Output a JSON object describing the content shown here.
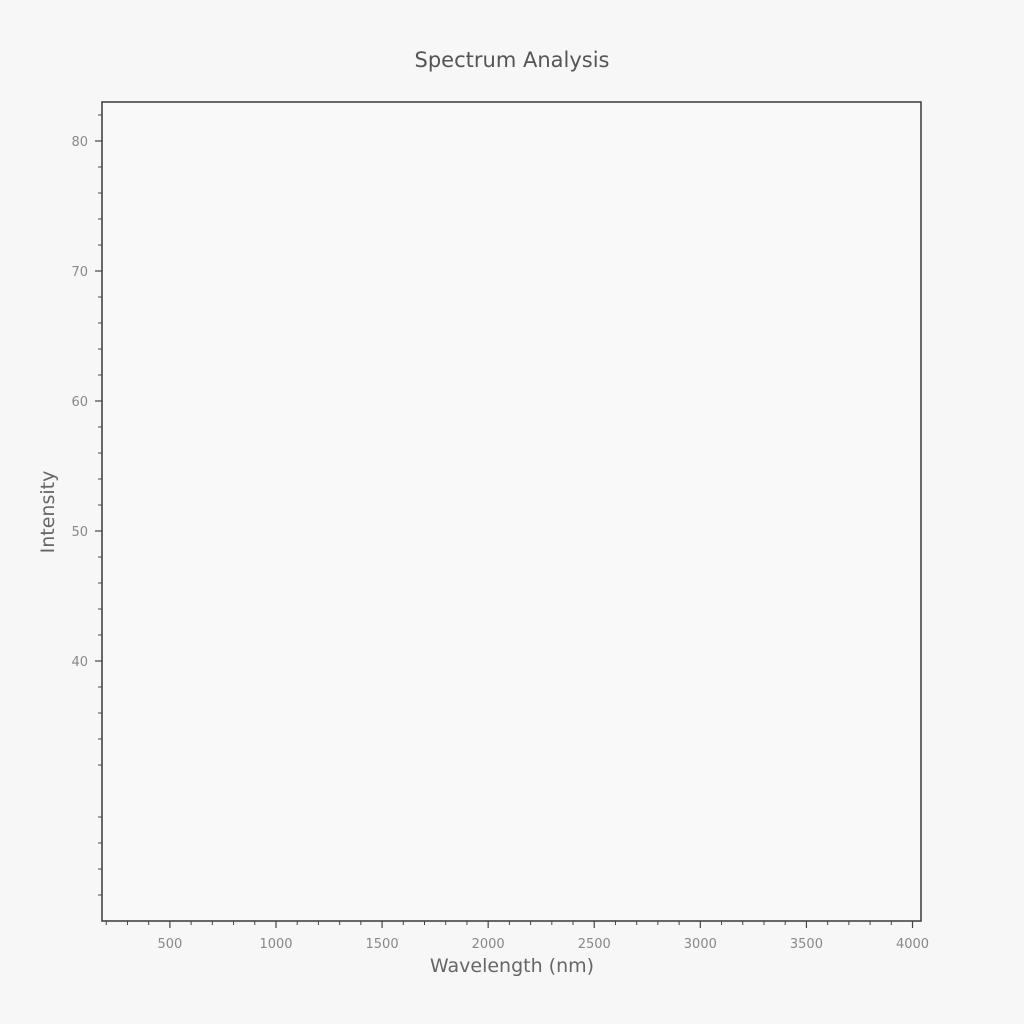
{
  "chart_data": {
    "type": "line",
    "title": "Spectrum Analysis",
    "xlabel": "Wavelength (nm)",
    "ylabel": "Intensity",
    "xlim": [
      180,
      4040
    ],
    "ylim": [
      20,
      83
    ],
    "x_ticks": [
      500,
      1000,
      1500,
      2000,
      2500,
      3000,
      3500,
      4000
    ],
    "x_tick_labels": [
      "500",
      "1000",
      "1500",
      "2000",
      "2500",
      "3000",
      "3500",
      "4000"
    ],
    "y_ticks": [
      40,
      50,
      60,
      70,
      80
    ],
    "y_tick_labels": [
      "40",
      "50",
      "60",
      "70",
      "80"
    ],
    "series": [],
    "grid": false,
    "colors": {
      "axis": "#444444",
      "tick_label": "#888888",
      "background": "#f7f7f7"
    }
  }
}
